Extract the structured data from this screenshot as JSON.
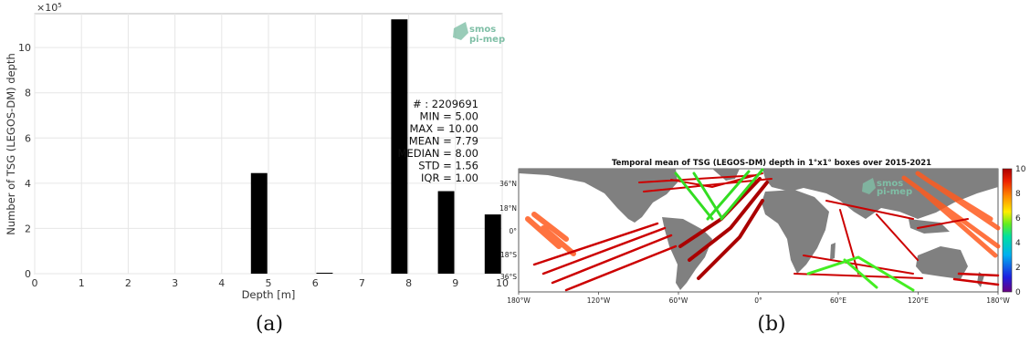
{
  "panels": [
    {
      "label": "(a)",
      "chart_data": {
        "type": "bar",
        "xlabel": "Depth [m]",
        "ylabel": "Number of TSG (LEGOS-DM) depth",
        "y_multiplier": "×10",
        "y_multiplier_exp": "5",
        "xlim": [
          0,
          10
        ],
        "ylim": [
          0,
          11.5
        ],
        "xticks": [
          "0",
          "1",
          "2",
          "3",
          "4",
          "5",
          "6",
          "7",
          "8",
          "9",
          "10"
        ],
        "yticks": [
          "0",
          "2",
          "4",
          "6",
          "8",
          "10"
        ],
        "grid": true,
        "bars": [
          {
            "x": 4.8,
            "value": 4.45
          },
          {
            "x": 6.2,
            "value": 0.03
          },
          {
            "x": 7.8,
            "value": 11.25
          },
          {
            "x": 8.8,
            "value": 3.65
          },
          {
            "x": 9.8,
            "value": 2.62
          }
        ],
        "bar_width": 0.35,
        "bar_color": "#000000",
        "stats": [
          "# : 2209691",
          "MIN = 5.00",
          "MAX =  10.00",
          "MEAN = 7.79",
          "MEDIAN = 8.00",
          "STD = 1.56",
          "IQR = 1.00"
        ],
        "logo": [
          "smos",
          "pi-mep"
        ]
      }
    },
    {
      "label": "(b)",
      "chart_data": {
        "type": "heatmap",
        "title": "Temporal mean of TSG (LEGOS-DM) depth in 1°x1° boxes over 2015-2021",
        "xticks": [
          "180°W",
          "120°W",
          "60°W",
          "0°",
          "60°E",
          "120°E",
          "180°W"
        ],
        "yticks": [
          "36°N",
          "18°N",
          "0°",
          "18°S",
          "36°S"
        ],
        "colorbar": {
          "min": 0,
          "max": 10,
          "ticks": [
            "10",
            "8",
            "6",
            "4",
            "2",
            "0"
          ]
        },
        "land_color": "#808080",
        "logo": [
          "smos",
          "pi-mep"
        ]
      }
    }
  ]
}
